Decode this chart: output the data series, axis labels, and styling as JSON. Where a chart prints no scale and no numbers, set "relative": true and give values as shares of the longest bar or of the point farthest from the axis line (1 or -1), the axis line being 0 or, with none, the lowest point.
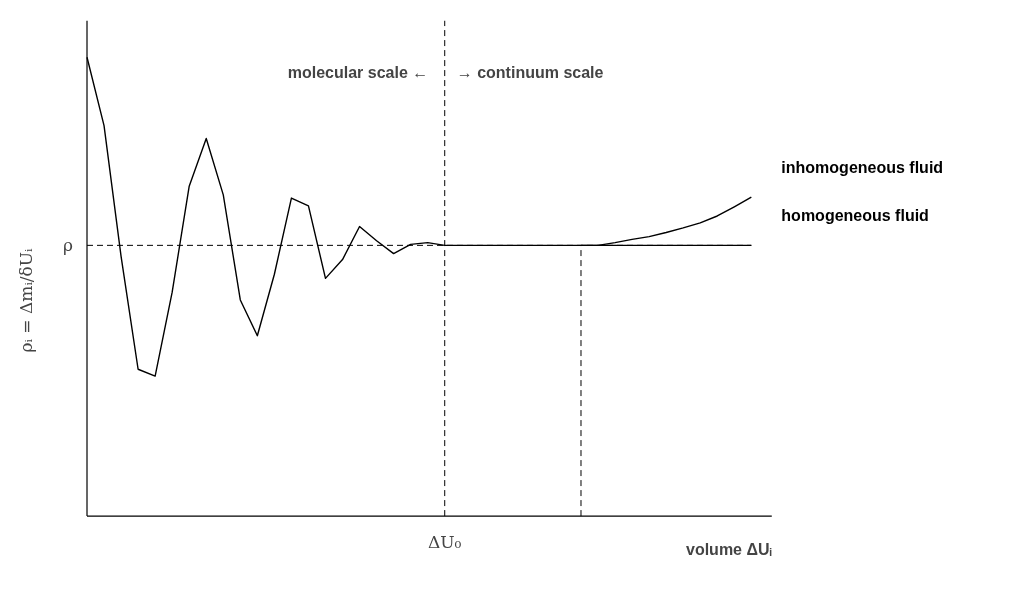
{
  "chart_data": {
    "type": "line",
    "relative": true,
    "xlabel": "volume ΔUᵢ",
    "ylabel": "ρᵢ = Δmᵢ/δUᵢ",
    "marker": "none",
    "categories": [
      null,
      null,
      null,
      null,
      null,
      null,
      null,
      null,
      null,
      null,
      null,
      null,
      null,
      null,
      null,
      null,
      null,
      null,
      null,
      null,
      null,
      null,
      null,
      null,
      null,
      null,
      null,
      null,
      null,
      null,
      null,
      null,
      null,
      null,
      null,
      null,
      null,
      null,
      null,
      null
    ],
    "annotations": [
      "molecular scale  ←",
      "→  continuum scale",
      "ΔU₀"
    ],
    "ref_lines": [
      {
        "axis": "y",
        "value": 0.59,
        "label": "ρ",
        "line_style": "dashed",
        "color": "#000000"
      }
    ],
    "series": [
      {
        "name": "inhomogeneous fluid",
        "color": "#000000",
        "line_style": "solid",
        "values": [
          1.0,
          0.851,
          0.566,
          0.32,
          0.305,
          0.488,
          0.719,
          0.823,
          0.7,
          0.471,
          0.393,
          0.527,
          0.693,
          0.676,
          0.518,
          0.559,
          0.631,
          0.6,
          0.572,
          0.592,
          0.596,
          0.59,
          0.59,
          0.59,
          0.59,
          0.59,
          0.59,
          0.59,
          0.59,
          0.59,
          0.59,
          0.596,
          0.603,
          0.609,
          0.618,
          0.628,
          0.639,
          0.654,
          0.674,
          0.695
        ]
      },
      {
        "name": "homogeneous fluid",
        "color": "#000000",
        "line_style": "solid",
        "values": [
          null,
          null,
          null,
          null,
          null,
          null,
          null,
          null,
          null,
          null,
          null,
          null,
          null,
          null,
          null,
          null,
          null,
          null,
          null,
          null,
          null,
          null,
          null,
          null,
          null,
          null,
          null,
          null,
          null,
          0.59,
          0.59,
          0.59,
          0.59,
          0.59,
          0.59,
          0.59,
          0.59,
          0.59,
          0.59,
          0.59
        ]
      }
    ]
  }
}
